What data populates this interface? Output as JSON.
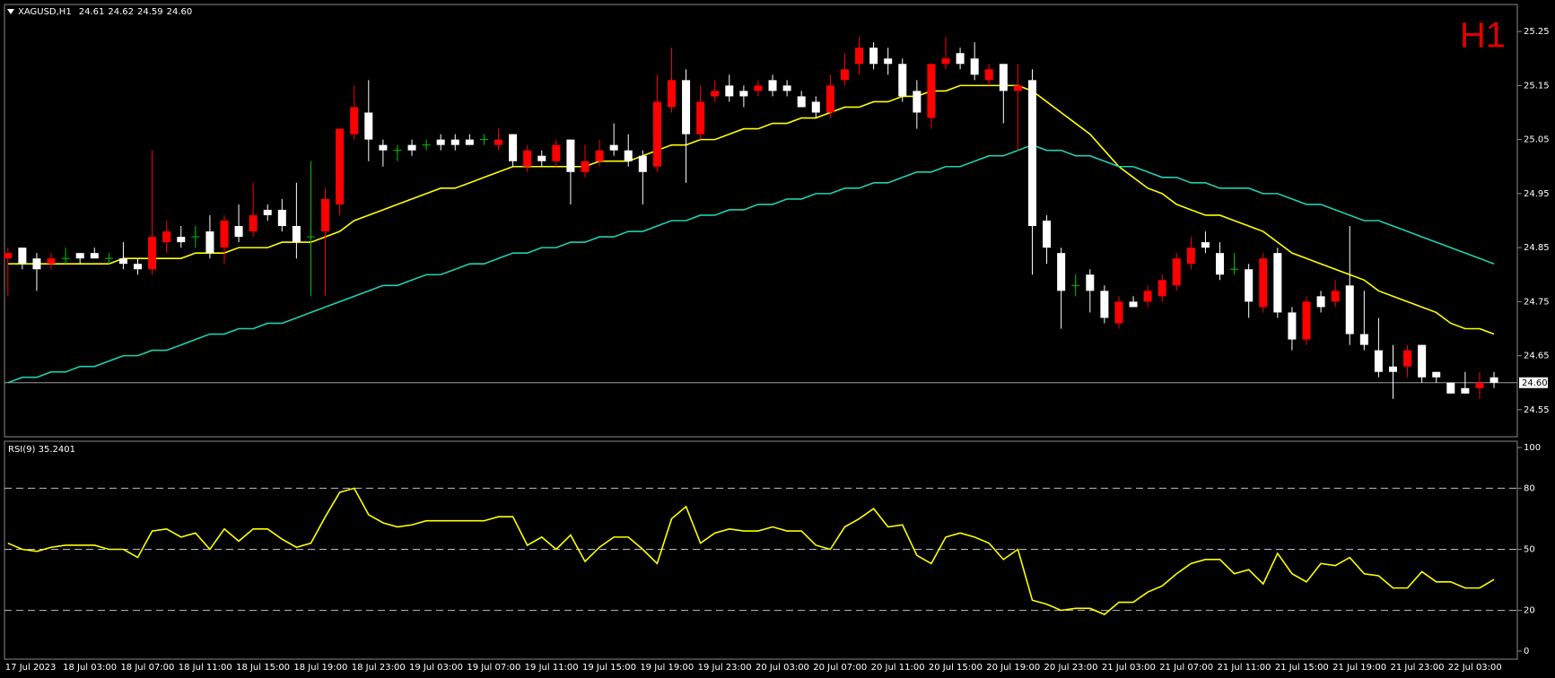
{
  "chart_data": [
    {
      "type": "candlestick",
      "title": "XAGUSD,H1",
      "title_values": [
        "24.61",
        "24.62",
        "24.59",
        "24.60"
      ],
      "timeframe_label": "H1",
      "categories": [
        "17 Jul 2023",
        null,
        null,
        null,
        "18 Jul 03:00",
        null,
        null,
        null,
        "18 Jul 07:00",
        null,
        null,
        null,
        "18 Jul 11:00",
        null,
        null,
        null,
        "18 Jul 15:00",
        null,
        null,
        null,
        "18 Jul 19:00",
        null,
        null,
        null,
        "18 Jul 23:00",
        null,
        null,
        null,
        "19 Jul 03:00",
        null,
        null,
        null,
        "19 Jul 07:00",
        null,
        null,
        null,
        "19 Jul 11:00",
        null,
        null,
        null,
        "19 Jul 15:00",
        null,
        null,
        null,
        "19 Jul 19:00",
        null,
        null,
        null,
        "19 Jul 23:00",
        null,
        null,
        null,
        "20 Jul 03:00",
        null,
        null,
        null,
        "20 Jul 07:00",
        null,
        null,
        null,
        "20 Jul 11:00",
        null,
        null,
        null,
        "20 Jul 15:00",
        null,
        null,
        null,
        "20 Jul 19:00",
        null,
        null,
        null,
        "20 Jul 23:00",
        null,
        null,
        null,
        "21 Jul 03:00",
        null,
        null,
        null,
        "21 Jul 07:00",
        null,
        null,
        null,
        "21 Jul 11:00",
        null,
        null,
        null,
        "21 Jul 15:00",
        null,
        null,
        null,
        "21 Jul 19:00",
        null,
        null,
        null,
        "21 Jul 23:00",
        null,
        null,
        null,
        "22 Jul 03:00",
        null,
        null,
        null
      ],
      "open": [
        24.83,
        24.85,
        24.83,
        24.82,
        24.83,
        24.84,
        24.84,
        24.83,
        24.83,
        24.82,
        24.81,
        24.86,
        24.87,
        24.87,
        24.88,
        24.85,
        24.89,
        24.88,
        24.92,
        24.92,
        24.89,
        24.87,
        24.88,
        24.93,
        25.06,
        25.1,
        25.04,
        25.03,
        25.04,
        25.04,
        25.05,
        25.05,
        25.05,
        25.05,
        25.04,
        25.06,
        25.0,
        25.02,
        25.01,
        25.05,
        24.99,
        25.01,
        25.04,
        25.03,
        25.02,
        25.0,
        25.11,
        25.16,
        25.06,
        25.13,
        25.15,
        25.14,
        25.14,
        25.16,
        25.15,
        25.13,
        25.12,
        25.1,
        25.16,
        25.19,
        25.22,
        25.2,
        25.19,
        25.14,
        25.09,
        25.19,
        25.21,
        25.2,
        25.16,
        25.19,
        25.14,
        25.16,
        24.9,
        24.84,
        24.78,
        24.8,
        24.77,
        24.71,
        24.75,
        24.75,
        24.76,
        24.78,
        24.82,
        24.86,
        24.84,
        24.81,
        24.81,
        24.74,
        24.84,
        24.73,
        24.68,
        24.76,
        24.75,
        24.78,
        24.69,
        24.66,
        24.63,
        24.63,
        24.67,
        24.62,
        24.6,
        24.59,
        24.59,
        24.61
      ],
      "high": [
        24.85,
        24.85,
        24.84,
        24.84,
        24.85,
        24.84,
        24.85,
        24.84,
        24.86,
        24.83,
        25.03,
        24.9,
        24.89,
        24.89,
        24.91,
        24.91,
        24.93,
        24.97,
        24.93,
        24.94,
        24.97,
        25.01,
        24.96,
        25.07,
        25.15,
        25.16,
        25.05,
        25.04,
        25.05,
        25.05,
        25.06,
        25.06,
        25.06,
        25.06,
        25.07,
        25.06,
        25.04,
        25.03,
        25.05,
        25.05,
        25.04,
        25.05,
        25.08,
        25.06,
        25.03,
        25.17,
        25.22,
        25.18,
        25.15,
        25.16,
        25.17,
        25.15,
        25.16,
        25.17,
        25.16,
        25.14,
        25.13,
        25.17,
        25.21,
        25.24,
        25.23,
        25.22,
        25.2,
        25.16,
        25.19,
        25.24,
        25.22,
        25.23,
        25.19,
        25.19,
        25.19,
        25.18,
        24.91,
        24.85,
        24.8,
        24.81,
        24.78,
        24.76,
        24.76,
        24.78,
        24.8,
        24.84,
        24.87,
        24.88,
        24.86,
        24.84,
        24.82,
        24.84,
        24.85,
        24.74,
        24.76,
        24.77,
        24.79,
        24.89,
        24.77,
        24.72,
        24.67,
        24.67,
        24.67,
        24.62,
        24.6,
        24.62,
        24.62,
        24.62
      ],
      "low": [
        24.76,
        24.81,
        24.77,
        24.81,
        24.82,
        24.82,
        24.83,
        24.82,
        24.81,
        24.8,
        24.8,
        24.84,
        24.85,
        24.85,
        24.83,
        24.82,
        24.86,
        24.87,
        24.9,
        24.88,
        24.83,
        24.76,
        24.76,
        24.91,
        25.05,
        25.01,
        25.0,
        25.01,
        25.02,
        25.03,
        25.03,
        25.03,
        25.04,
        25.04,
        25.03,
        25.0,
        24.99,
        25.0,
        25.0,
        24.93,
        24.98,
        25.0,
        25.02,
        25.0,
        24.93,
        24.99,
        25.1,
        24.97,
        25.05,
        25.12,
        25.12,
        25.11,
        25.13,
        25.13,
        25.13,
        25.11,
        25.09,
        25.09,
        25.15,
        25.17,
        25.18,
        25.17,
        25.12,
        25.07,
        25.07,
        25.18,
        25.18,
        25.16,
        25.15,
        25.08,
        25.03,
        24.8,
        24.82,
        24.7,
        24.76,
        24.73,
        24.71,
        24.7,
        24.74,
        24.74,
        24.75,
        24.77,
        24.81,
        24.84,
        24.79,
        24.8,
        24.72,
        24.73,
        24.72,
        24.66,
        24.67,
        24.73,
        24.74,
        24.67,
        24.66,
        24.61,
        24.57,
        24.61,
        24.6,
        24.6,
        24.58,
        24.58,
        24.57,
        24.59
      ],
      "close": [
        24.84,
        24.82,
        24.81,
        24.83,
        24.83,
        24.83,
        24.83,
        24.83,
        24.82,
        24.81,
        24.87,
        24.88,
        24.86,
        24.87,
        24.84,
        24.9,
        24.87,
        24.91,
        24.91,
        24.89,
        24.86,
        24.87,
        24.94,
        25.07,
        25.11,
        25.05,
        25.03,
        25.03,
        25.03,
        25.04,
        25.04,
        25.04,
        25.04,
        25.05,
        25.05,
        25.01,
        25.03,
        25.01,
        25.04,
        24.99,
        25.01,
        25.03,
        25.03,
        25.01,
        24.99,
        25.12,
        25.16,
        25.06,
        25.12,
        25.14,
        25.13,
        25.13,
        25.15,
        25.14,
        25.14,
        25.11,
        25.1,
        25.15,
        25.18,
        25.22,
        25.19,
        25.19,
        25.13,
        25.1,
        25.19,
        25.2,
        25.19,
        25.17,
        25.18,
        25.14,
        25.15,
        24.89,
        24.85,
        24.77,
        24.78,
        24.77,
        24.72,
        24.75,
        24.74,
        24.77,
        24.79,
        24.83,
        24.85,
        24.85,
        24.8,
        24.81,
        24.75,
        24.83,
        24.73,
        24.68,
        24.75,
        24.74,
        24.77,
        24.69,
        24.67,
        24.62,
        24.62,
        24.66,
        24.61,
        24.61,
        24.58,
        24.58,
        24.6,
        24.6
      ],
      "bull_color": "#ff0000",
      "bear_color": "#ffffff",
      "doji_color": "#00c800",
      "series": [
        {
          "color": "#ffff00",
          "values": [
            24.82,
            24.82,
            24.82,
            24.82,
            24.82,
            24.82,
            24.82,
            24.82,
            24.83,
            24.83,
            24.83,
            24.83,
            24.83,
            24.84,
            24.84,
            24.84,
            24.85,
            24.85,
            24.85,
            24.86,
            24.86,
            24.86,
            24.87,
            24.88,
            24.9,
            24.91,
            24.92,
            24.93,
            24.94,
            24.95,
            24.96,
            24.96,
            24.97,
            24.98,
            24.99,
            25.0,
            25.0,
            25.0,
            25.0,
            25.0,
            25.0,
            25.01,
            25.01,
            25.01,
            25.02,
            25.03,
            25.04,
            25.04,
            25.05,
            25.05,
            25.06,
            25.07,
            25.07,
            25.08,
            25.08,
            25.09,
            25.09,
            25.1,
            25.11,
            25.11,
            25.12,
            25.12,
            25.13,
            25.13,
            25.14,
            25.14,
            25.15,
            25.15,
            25.15,
            25.15,
            25.15,
            25.14,
            25.12,
            25.1,
            25.08,
            25.06,
            25.03,
            25.0,
            24.98,
            24.96,
            24.95,
            24.93,
            24.92,
            24.91,
            24.91,
            24.9,
            24.89,
            24.88,
            24.86,
            24.84,
            24.83,
            24.82,
            24.81,
            24.8,
            24.79,
            24.77,
            24.76,
            24.75,
            24.74,
            24.73,
            24.71,
            24.7,
            24.7,
            24.69
          ]
        },
        {
          "color": "#20d0b0",
          "values": [
            24.6,
            24.61,
            24.61,
            24.62,
            24.62,
            24.63,
            24.63,
            24.64,
            24.65,
            24.65,
            24.66,
            24.66,
            24.67,
            24.68,
            24.69,
            24.69,
            24.7,
            24.7,
            24.71,
            24.71,
            24.72,
            24.73,
            24.74,
            24.75,
            24.76,
            24.77,
            24.78,
            24.78,
            24.79,
            24.8,
            24.8,
            24.81,
            24.82,
            24.82,
            24.83,
            24.84,
            24.84,
            24.85,
            24.85,
            24.86,
            24.86,
            24.87,
            24.87,
            24.88,
            24.88,
            24.89,
            24.9,
            24.9,
            24.91,
            24.91,
            24.92,
            24.92,
            24.93,
            24.93,
            24.94,
            24.94,
            24.95,
            24.95,
            24.96,
            24.96,
            24.97,
            24.97,
            24.98,
            24.99,
            24.99,
            25.0,
            25.0,
            25.01,
            25.02,
            25.02,
            25.03,
            25.04,
            25.03,
            25.03,
            25.02,
            25.02,
            25.01,
            25.0,
            25.0,
            24.99,
            24.98,
            24.98,
            24.97,
            24.97,
            24.96,
            24.96,
            24.96,
            24.95,
            24.95,
            24.94,
            24.93,
            24.93,
            24.92,
            24.91,
            24.9,
            24.9,
            24.89,
            24.88,
            24.87,
            24.86,
            24.85,
            24.84,
            24.83,
            24.82
          ]
        }
      ],
      "current_price": {
        "value": 24.6,
        "label": "24.60"
      },
      "ylim": [
        24.5,
        25.3
      ],
      "yticks": [
        25.25,
        25.15,
        25.05,
        24.95,
        24.85,
        24.75,
        24.65,
        24.55
      ]
    },
    {
      "type": "line",
      "title": "RSI(9) 35.2401",
      "color": "#ffff00",
      "values": [
        53,
        50,
        49,
        51,
        52,
        52,
        52,
        50,
        50,
        46,
        59,
        60,
        56,
        58,
        50,
        60,
        54,
        60,
        60,
        55,
        51,
        53,
        66,
        78,
        80,
        67,
        63,
        61,
        62,
        64,
        64,
        64,
        64,
        64,
        66,
        66,
        52,
        56,
        50,
        57,
        44,
        51,
        56,
        56,
        50,
        43,
        65,
        71,
        53,
        58,
        60,
        59,
        59,
        61,
        59,
        59,
        52,
        50,
        61,
        65,
        70,
        61,
        62,
        47,
        43,
        56,
        58,
        56,
        53,
        45,
        50,
        25,
        23,
        20,
        21,
        21,
        18,
        24,
        24,
        29,
        32,
        38,
        43,
        45,
        45,
        38,
        40,
        33,
        48,
        38,
        34,
        43,
        42,
        46,
        38,
        37,
        31,
        31,
        39,
        34,
        34,
        31,
        31,
        35.2401
      ],
      "ylim": [
        0,
        100
      ],
      "yticks": [
        100,
        80,
        50,
        20,
        0
      ]
    }
  ]
}
